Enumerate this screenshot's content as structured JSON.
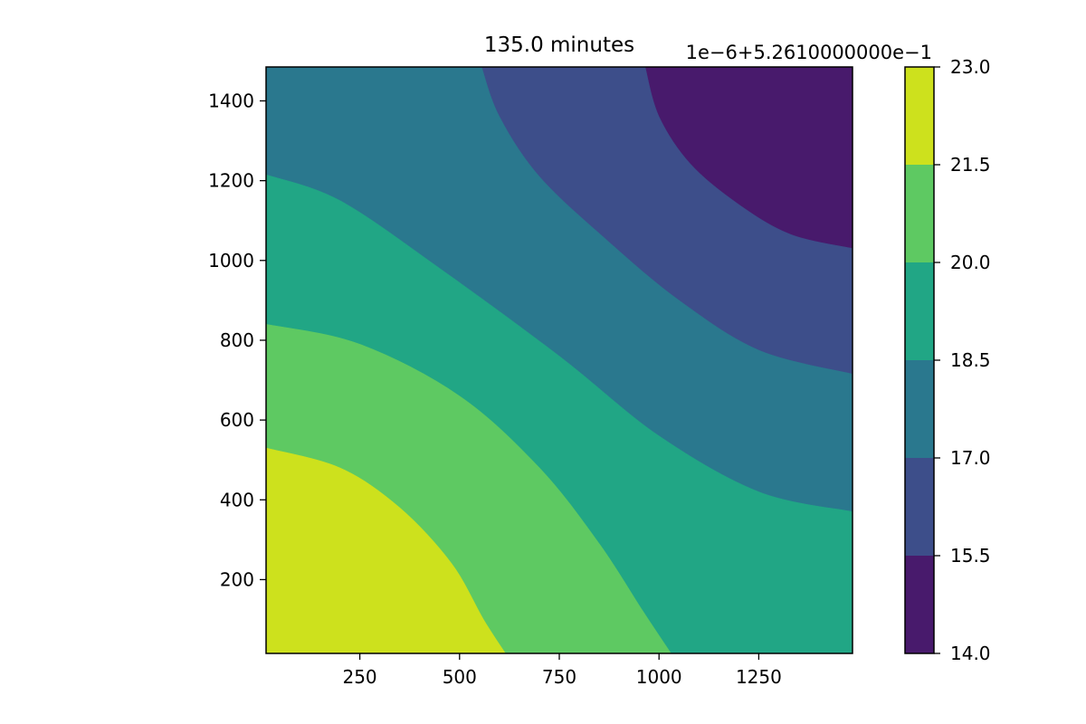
{
  "chart_data": {
    "type": "contourf",
    "title": "135.0 minutes",
    "xlabel": "",
    "ylabel": "",
    "x_range": [
      15,
      1485
    ],
    "y_range": [
      15,
      1485
    ],
    "x_ticks": [
      250,
      500,
      750,
      1000,
      1250
    ],
    "y_ticks": [
      200,
      400,
      600,
      800,
      1000,
      1200,
      1400
    ],
    "grid": false,
    "colorbar": {
      "offset_label": "1e−6+5.2610000000e−1",
      "levels": [
        14.0,
        15.5,
        17.0,
        18.5,
        20.0,
        21.5,
        23.0
      ],
      "tick_labels": [
        "14.0",
        "15.5",
        "17.0",
        "18.5",
        "20.0",
        "21.5",
        "23.0"
      ],
      "colors": [
        "#481a6c",
        "#3d4e8a",
        "#2a788e",
        "#21a685",
        "#5ec962",
        "#cde11d"
      ]
    },
    "contour_boundaries": [
      {
        "between_levels": [
          21.5,
          23.0
        ],
        "points": [
          [
            15,
            530
          ],
          [
            200,
            480
          ],
          [
            350,
            380
          ],
          [
            480,
            240
          ],
          [
            560,
            100
          ],
          [
            615,
            15
          ]
        ]
      },
      {
        "between_levels": [
          20.0,
          21.5
        ],
        "points": [
          [
            15,
            840
          ],
          [
            250,
            790
          ],
          [
            500,
            660
          ],
          [
            700,
            480
          ],
          [
            850,
            290
          ],
          [
            960,
            120
          ],
          [
            1030,
            15
          ]
        ]
      },
      {
        "between_levels": [
          18.5,
          20.0
        ],
        "points": [
          [
            15,
            1215
          ],
          [
            200,
            1150
          ],
          [
            450,
            980
          ],
          [
            750,
            760
          ],
          [
            1000,
            560
          ],
          [
            1250,
            420
          ],
          [
            1485,
            370
          ]
        ]
      },
      {
        "between_levels": [
          17.0,
          18.5
        ],
        "points": [
          [
            555,
            1485
          ],
          [
            600,
            1360
          ],
          [
            700,
            1210
          ],
          [
            870,
            1050
          ],
          [
            1050,
            900
          ],
          [
            1250,
            775
          ],
          [
            1485,
            715
          ]
        ]
      },
      {
        "between_levels": [
          15.5,
          17.0
        ],
        "points": [
          [
            965,
            1485
          ],
          [
            1000,
            1360
          ],
          [
            1080,
            1240
          ],
          [
            1200,
            1140
          ],
          [
            1330,
            1065
          ],
          [
            1485,
            1030
          ]
        ]
      }
    ]
  }
}
